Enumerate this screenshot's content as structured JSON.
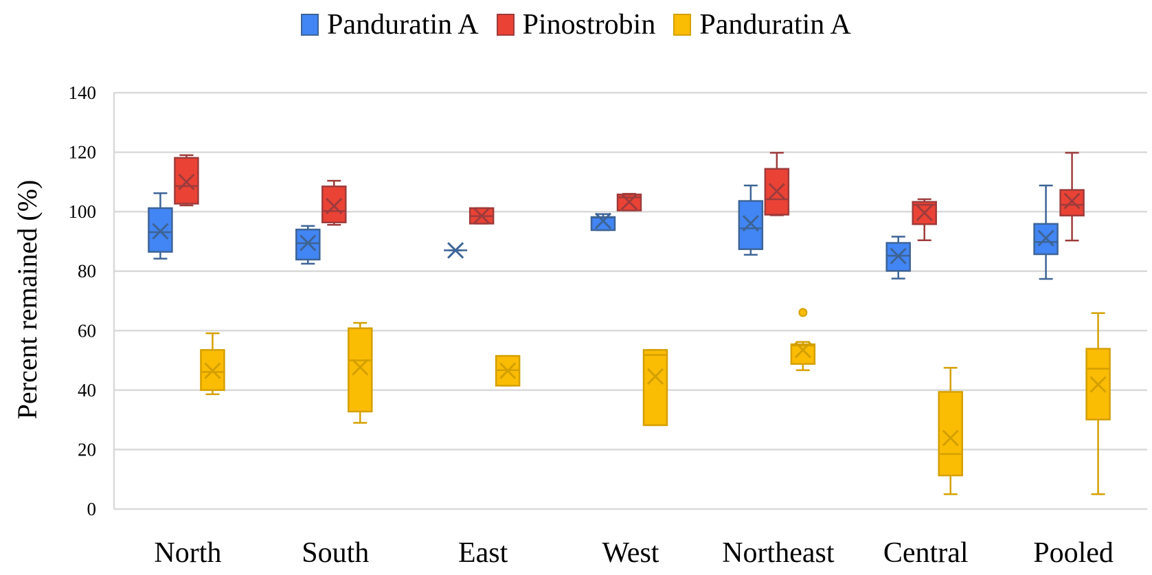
{
  "chart_data": {
    "type": "box",
    "title": "",
    "xlabel": "",
    "ylabel": "Percent remained (%)",
    "ylim": [
      0,
      140
    ],
    "yticks": [
      0,
      20,
      40,
      60,
      80,
      100,
      120,
      140
    ],
    "grid": true,
    "legend_position": "top-center",
    "categories": [
      "North",
      "South",
      "East",
      "West",
      "Northeast",
      "Central",
      "Pooled"
    ],
    "series": [
      {
        "name": "Panduratin A",
        "color": "#4285F4",
        "stroke": "#3D6496",
        "boxes": [
          {
            "min": 84.2,
            "q1": 86.5,
            "median": 93.1,
            "mean": 93.4,
            "q3": 101.2,
            "max": 106.2,
            "outliers": []
          },
          {
            "min": 82.5,
            "q1": 83.9,
            "median": 89.4,
            "mean": 89.5,
            "q3": 94.0,
            "max": 95.2,
            "outliers": []
          },
          {
            "min": 87.0,
            "q1": 87.0,
            "median": 87.0,
            "mean": 87.0,
            "q3": 87.0,
            "max": 87.0,
            "outliers": []
          },
          {
            "min": 93.8,
            "q1": 93.8,
            "median": 98.0,
            "mean": 96.9,
            "q3": 98.2,
            "max": 99.2,
            "outliers": []
          },
          {
            "min": 85.5,
            "q1": 87.4,
            "median": 94.4,
            "mean": 96.1,
            "q3": 103.6,
            "max": 108.8,
            "outliers": []
          },
          {
            "min": 77.5,
            "q1": 80.1,
            "median": 85.2,
            "mean": 85.1,
            "q3": 89.5,
            "max": 91.6,
            "outliers": []
          },
          {
            "min": 77.4,
            "q1": 85.7,
            "median": 89.8,
            "mean": 91.1,
            "q3": 95.9,
            "max": 108.8,
            "outliers": []
          }
        ]
      },
      {
        "name": "Pinostrobin",
        "color": "#EA4335",
        "stroke": "#9E3B3B",
        "boxes": [
          {
            "min": 102.1,
            "q1": 102.7,
            "median": 108.6,
            "mean": 110.0,
            "q3": 118.1,
            "max": 119.0,
            "outliers": []
          },
          {
            "min": 95.6,
            "q1": 96.4,
            "median": 100.2,
            "mean": 101.9,
            "q3": 108.5,
            "max": 110.4,
            "outliers": []
          },
          {
            "min": 96.0,
            "q1": 96.0,
            "median": 98.5,
            "mean": 98.6,
            "q3": 101.2,
            "max": 101.2,
            "outliers": []
          },
          {
            "min": 100.4,
            "q1": 100.4,
            "median": 104.8,
            "mean": 103.3,
            "q3": 105.8,
            "max": 106.0,
            "outliers": []
          },
          {
            "min": 98.8,
            "q1": 99.0,
            "median": 104.2,
            "mean": 106.9,
            "q3": 114.4,
            "max": 119.8,
            "outliers": []
          },
          {
            "min": 90.4,
            "q1": 95.8,
            "median": 102.3,
            "mean": 99.6,
            "q3": 103.3,
            "max": 104.2,
            "outliers": []
          },
          {
            "min": 90.3,
            "q1": 98.7,
            "median": 102.3,
            "mean": 103.6,
            "q3": 107.3,
            "max": 119.8,
            "outliers": []
          }
        ]
      },
      {
        "name": "Panduratin A",
        "color": "#FBBC04",
        "stroke": "#D4A000",
        "boxes": [
          {
            "min": 38.6,
            "q1": 40.0,
            "median": 46.1,
            "mean": 46.5,
            "q3": 53.5,
            "max": 59.1,
            "outliers": []
          },
          {
            "min": 29.0,
            "q1": 32.8,
            "median": 50.0,
            "mean": 47.7,
            "q3": 60.8,
            "max": 62.6,
            "outliers": []
          },
          {
            "min": 41.5,
            "q1": 41.5,
            "median": 46.7,
            "mean": 46.5,
            "q3": 51.5,
            "max": 51.5,
            "outliers": []
          },
          {
            "min": 28.2,
            "q1": 28.2,
            "median": 51.8,
            "mean": 44.6,
            "q3": 53.5,
            "max": 53.5,
            "outliers": []
          },
          {
            "min": 46.7,
            "q1": 48.8,
            "median": 55.0,
            "mean": 53.5,
            "q3": 55.4,
            "max": 56.2,
            "outliers": [
              66.1
            ]
          },
          {
            "min": 5.0,
            "q1": 11.3,
            "median": 18.5,
            "mean": 23.9,
            "q3": 39.4,
            "max": 47.5,
            "outliers": []
          },
          {
            "min": 5.0,
            "q1": 30.1,
            "median": 47.2,
            "mean": 41.9,
            "q3": 53.9,
            "max": 65.9,
            "outliers": []
          }
        ]
      }
    ]
  }
}
